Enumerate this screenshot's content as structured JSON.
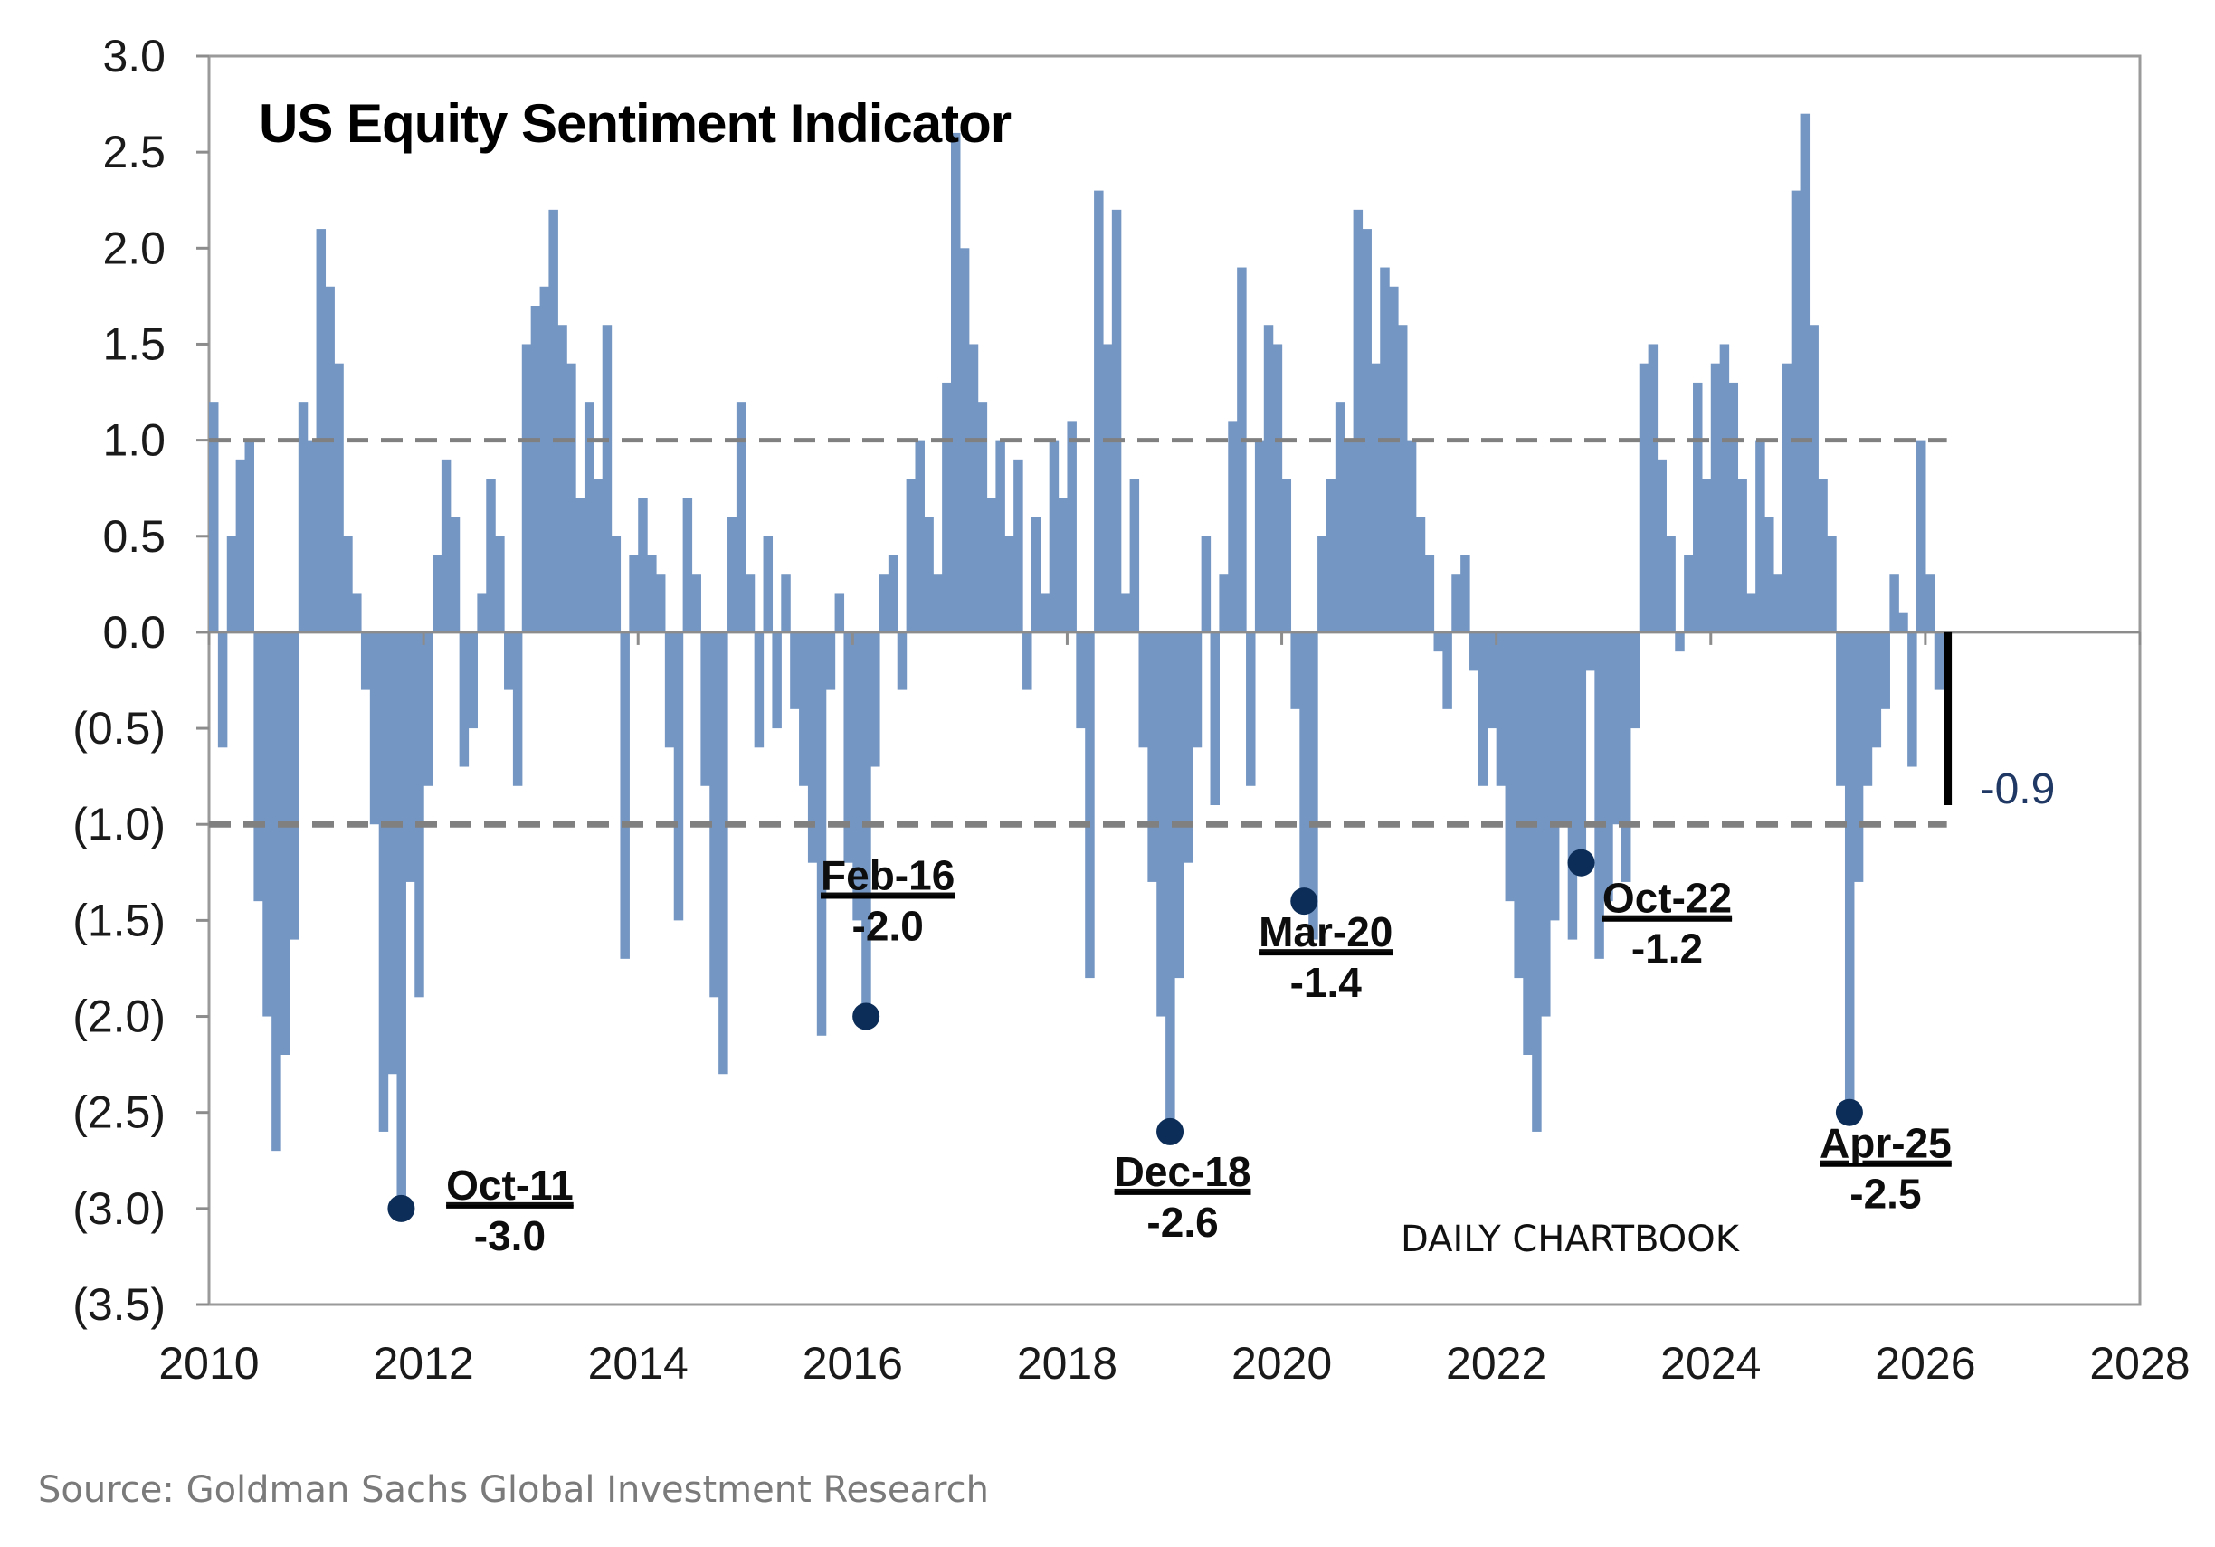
{
  "chart_data": {
    "type": "bar",
    "title": "US Equity Sentiment Indicator",
    "xlabel": "",
    "ylabel": "",
    "xlim": [
      2010,
      2028
    ],
    "ylim": [
      -3.5,
      3.0
    ],
    "x_ticks": [
      "2010",
      "2012",
      "2014",
      "2016",
      "2018",
      "2020",
      "2022",
      "2024",
      "2026",
      "2028"
    ],
    "y_ticks": [
      "3.0",
      "2.5",
      "2.0",
      "1.5",
      "1.0",
      "0.5",
      "0.0",
      "(0.5)",
      "(1.0)",
      "(1.5)",
      "(2.0)",
      "(2.5)",
      "(3.0)",
      "(3.5)"
    ],
    "y_tick_values": [
      3.0,
      2.5,
      2.0,
      1.5,
      1.0,
      0.5,
      0.0,
      -0.5,
      -1.0,
      -1.5,
      -2.0,
      -2.5,
      -3.0,
      -3.5
    ],
    "reference_lines": [
      1.0,
      -1.0
    ],
    "grid": false,
    "bar_color": "#7496c3",
    "series": [
      {
        "start": "2010-01",
        "frequency": "monthly",
        "values": [
          1.2,
          -0.6,
          0.5,
          0.9,
          1.0,
          -1.4,
          -2.0,
          -2.7,
          -2.2,
          -1.6,
          1.2,
          1.0,
          2.1,
          1.8,
          1.4,
          0.5,
          0.2,
          -0.3,
          -1.0,
          -2.6,
          -2.3,
          -3.0,
          -1.3,
          -1.9,
          -0.8,
          0.4,
          0.9,
          0.6,
          -0.7,
          -0.5,
          0.2,
          0.8,
          0.5,
          -0.3,
          -0.8,
          1.5,
          1.7,
          1.8,
          2.2,
          1.6,
          1.4,
          0.7,
          1.2,
          0.8,
          1.6,
          0.5,
          -1.7,
          0.4,
          0.7,
          0.4,
          0.3,
          -0.6,
          -1.5,
          0.7,
          0.3,
          -0.8,
          -1.9,
          -2.3,
          0.6,
          1.2,
          0.3,
          -0.6,
          0.5,
          -0.5,
          0.3,
          -0.4,
          -0.8,
          -1.2,
          -2.1,
          -0.3,
          0.2,
          -1.2,
          -1.5,
          -2.0,
          -0.7,
          0.3,
          0.4,
          -0.3,
          0.8,
          1.0,
          0.6,
          0.3,
          1.3,
          2.6,
          2.0,
          1.5,
          1.2,
          0.7,
          1.0,
          0.5,
          0.9,
          -0.3,
          0.6,
          0.2,
          1.0,
          0.7,
          1.1,
          -0.5,
          -1.8,
          2.3,
          1.5,
          2.2,
          0.2,
          0.8,
          -0.6,
          -1.3,
          -2.0,
          -2.6,
          -1.8,
          -1.2,
          -0.6,
          0.5,
          -0.9,
          0.3,
          1.1,
          1.9,
          -0.8,
          1.0,
          1.6,
          1.5,
          0.8,
          -0.4,
          -1.4,
          -1.6,
          0.5,
          0.8,
          1.2,
          1.0,
          2.2,
          2.1,
          1.4,
          1.9,
          1.8,
          1.6,
          1.0,
          0.6,
          0.4,
          -0.1,
          -0.4,
          0.3,
          0.4,
          -0.2,
          -0.8,
          -0.5,
          -0.8,
          -1.4,
          -1.8,
          -2.2,
          -2.6,
          -2.0,
          -1.5,
          -1.0,
          -1.6,
          -1.2,
          -0.2,
          -1.7,
          -1.4,
          -1.0,
          -1.3,
          -0.5,
          1.4,
          1.5,
          0.9,
          0.5,
          -0.1,
          0.4,
          1.3,
          0.8,
          1.4,
          1.5,
          1.3,
          0.8,
          0.2,
          1.0,
          0.6,
          0.3,
          1.4,
          2.3,
          2.7,
          1.6,
          0.8,
          0.5,
          -0.8,
          -2.5,
          -1.3,
          -0.8,
          -0.6,
          -0.4,
          0.3,
          0.1,
          -0.7,
          1.0,
          0.3,
          -0.3
        ]
      }
    ],
    "latest": {
      "date": "2026-03",
      "value": -0.9,
      "label": "-0.9",
      "color": "#000000",
      "label_color": "#1f3864"
    },
    "annotations": [
      {
        "date": "2011-10",
        "value": -3.0,
        "label": "Oct-11",
        "value_label": "-3.0"
      },
      {
        "date": "2016-02",
        "value": -2.0,
        "label": "Feb-16",
        "value_label": "-2.0"
      },
      {
        "date": "2018-12",
        "value": -2.6,
        "label": "Dec-18",
        "value_label": "-2.6"
      },
      {
        "date": "2020-03",
        "value": -1.4,
        "label": "Mar-20",
        "value_label": "-1.4"
      },
      {
        "date": "2022-10",
        "value": -1.2,
        "label": "Oct-22",
        "value_label": "-1.2"
      },
      {
        "date": "2025-04",
        "value": -2.5,
        "label": "Apr-25",
        "value_label": "-2.5"
      }
    ],
    "marker_color": "#0b2d57"
  },
  "watermark": "DAILY CHARTBOOK",
  "source": "Source: Goldman Sachs Global Investment Research"
}
